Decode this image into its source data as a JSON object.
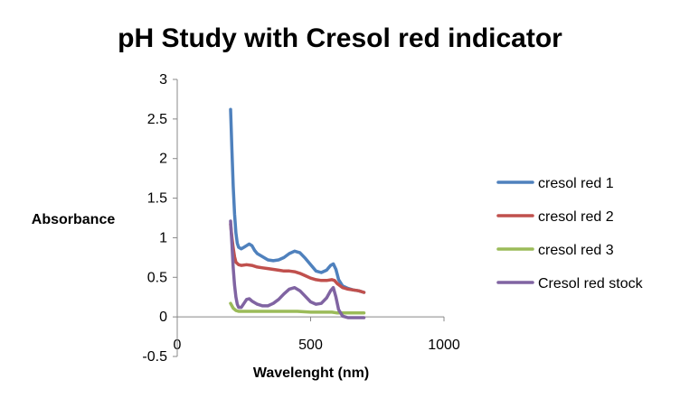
{
  "chart_data": {
    "type": "line",
    "title": "pH Study with Cresol red indicator",
    "xlabel": "Wavelenght (nm)",
    "ylabel": "Absorbance",
    "xlim": [
      0,
      1000
    ],
    "ylim": [
      -0.5,
      3
    ],
    "x_ticks": [
      0,
      500,
      1000
    ],
    "y_ticks": [
      -0.5,
      0,
      0.5,
      1,
      1.5,
      2,
      2.5,
      3
    ],
    "x_tick_labels": [
      "0",
      "500",
      "1000"
    ],
    "y_tick_labels": [
      "-0.5",
      "0",
      "0.5",
      "1",
      "1.5",
      "2",
      "2.5",
      "3"
    ],
    "grid": false,
    "legend_position": "right",
    "series": [
      {
        "name": "cresol red 1",
        "color": "#4F81BD",
        "points": [
          [
            200,
            2.62
          ],
          [
            205,
            2.1
          ],
          [
            210,
            1.65
          ],
          [
            215,
            1.3
          ],
          [
            220,
            1.06
          ],
          [
            225,
            0.93
          ],
          [
            230,
            0.88
          ],
          [
            240,
            0.86
          ],
          [
            250,
            0.88
          ],
          [
            260,
            0.9
          ],
          [
            270,
            0.92
          ],
          [
            280,
            0.9
          ],
          [
            290,
            0.84
          ],
          [
            300,
            0.8
          ],
          [
            320,
            0.76
          ],
          [
            340,
            0.72
          ],
          [
            360,
            0.71
          ],
          [
            380,
            0.72
          ],
          [
            400,
            0.75
          ],
          [
            420,
            0.8
          ],
          [
            440,
            0.83
          ],
          [
            460,
            0.81
          ],
          [
            480,
            0.74
          ],
          [
            500,
            0.66
          ],
          [
            520,
            0.58
          ],
          [
            540,
            0.56
          ],
          [
            560,
            0.59
          ],
          [
            575,
            0.65
          ],
          [
            585,
            0.67
          ],
          [
            595,
            0.6
          ],
          [
            605,
            0.47
          ],
          [
            620,
            0.39
          ],
          [
            640,
            0.36
          ],
          [
            660,
            0.34
          ],
          [
            680,
            0.33
          ],
          [
            700,
            0.31
          ]
        ]
      },
      {
        "name": "cresol red 2",
        "color": "#C0504D",
        "points": [
          [
            200,
            1.17
          ],
          [
            205,
            1.0
          ],
          [
            210,
            0.87
          ],
          [
            215,
            0.76
          ],
          [
            220,
            0.69
          ],
          [
            230,
            0.66
          ],
          [
            240,
            0.65
          ],
          [
            260,
            0.66
          ],
          [
            280,
            0.65
          ],
          [
            300,
            0.63
          ],
          [
            320,
            0.62
          ],
          [
            340,
            0.61
          ],
          [
            360,
            0.6
          ],
          [
            380,
            0.59
          ],
          [
            400,
            0.58
          ],
          [
            420,
            0.58
          ],
          [
            440,
            0.57
          ],
          [
            460,
            0.55
          ],
          [
            480,
            0.52
          ],
          [
            500,
            0.49
          ],
          [
            520,
            0.47
          ],
          [
            540,
            0.46
          ],
          [
            560,
            0.46
          ],
          [
            580,
            0.47
          ],
          [
            590,
            0.46
          ],
          [
            600,
            0.42
          ],
          [
            620,
            0.37
          ],
          [
            640,
            0.35
          ],
          [
            660,
            0.34
          ],
          [
            680,
            0.33
          ],
          [
            700,
            0.31
          ]
        ]
      },
      {
        "name": "cresol red 3",
        "color": "#9BBB59",
        "points": [
          [
            200,
            0.17
          ],
          [
            210,
            0.11
          ],
          [
            220,
            0.08
          ],
          [
            230,
            0.07
          ],
          [
            250,
            0.07
          ],
          [
            270,
            0.07
          ],
          [
            300,
            0.07
          ],
          [
            350,
            0.07
          ],
          [
            400,
            0.07
          ],
          [
            450,
            0.07
          ],
          [
            500,
            0.06
          ],
          [
            550,
            0.06
          ],
          [
            580,
            0.06
          ],
          [
            600,
            0.05
          ],
          [
            650,
            0.05
          ],
          [
            700,
            0.05
          ]
        ]
      },
      {
        "name": "Cresol red stock",
        "color": "#8064A2",
        "points": [
          [
            200,
            1.21
          ],
          [
            205,
            0.92
          ],
          [
            210,
            0.62
          ],
          [
            215,
            0.4
          ],
          [
            220,
            0.25
          ],
          [
            225,
            0.16
          ],
          [
            230,
            0.12
          ],
          [
            240,
            0.12
          ],
          [
            250,
            0.17
          ],
          [
            260,
            0.22
          ],
          [
            270,
            0.23
          ],
          [
            280,
            0.2
          ],
          [
            300,
            0.16
          ],
          [
            320,
            0.14
          ],
          [
            340,
            0.14
          ],
          [
            360,
            0.17
          ],
          [
            380,
            0.22
          ],
          [
            400,
            0.29
          ],
          [
            420,
            0.35
          ],
          [
            440,
            0.37
          ],
          [
            460,
            0.33
          ],
          [
            480,
            0.26
          ],
          [
            500,
            0.19
          ],
          [
            520,
            0.16
          ],
          [
            540,
            0.17
          ],
          [
            560,
            0.24
          ],
          [
            575,
            0.33
          ],
          [
            585,
            0.37
          ],
          [
            595,
            0.25
          ],
          [
            605,
            0.09
          ],
          [
            620,
            0.01
          ],
          [
            640,
            -0.01
          ],
          [
            660,
            -0.01
          ],
          [
            680,
            -0.01
          ],
          [
            700,
            -0.01
          ]
        ]
      }
    ]
  }
}
